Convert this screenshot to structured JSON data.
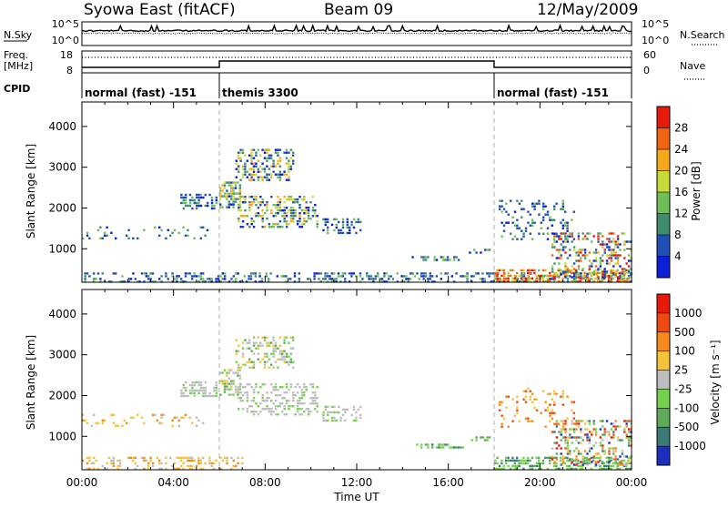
{
  "header": {
    "title": "Syowa East (fitACF)",
    "beam": "Beam 09",
    "date": "12/May/2009"
  },
  "chart_data": [
    {
      "type": "line",
      "panel": "noise",
      "left_label": "N.Sky",
      "left_ticks": [
        "10^5",
        "10^0"
      ],
      "right_ticks": [
        "10^5",
        "10^0"
      ],
      "right_legend": "N.Search",
      "description_series": [
        {
          "name": "N.Sky",
          "style": "solid"
        },
        {
          "name": "N.Search",
          "style": "dotted"
        }
      ]
    },
    {
      "type": "line",
      "panel": "frequency",
      "left_label_line1": "Freq.",
      "left_label_line2": "[MHz]",
      "left_ticks": [
        "18",
        "8"
      ],
      "right_ticks": [
        "60",
        "0"
      ],
      "right_legend": "Nave",
      "freq_segments": [
        {
          "start_h": 0,
          "end_h": 6,
          "level": "low"
        },
        {
          "start_h": 6,
          "end_h": 18,
          "level": "high"
        },
        {
          "start_h": 18,
          "end_h": 24,
          "level": "low"
        }
      ]
    },
    {
      "type": "table",
      "panel": "cpid",
      "label": "CPID",
      "modes": [
        {
          "label": "normal (fast) -151",
          "start_h": 0,
          "end_h": 6
        },
        {
          "label": "themis 3300",
          "start_h": 6,
          "end_h": 18
        },
        {
          "label": "normal (fast) -151",
          "start_h": 18,
          "end_h": 24
        }
      ]
    },
    {
      "type": "heatmap",
      "panel": "power",
      "ylabel": "Slant Range [km]",
      "yticks": [
        1000,
        2000,
        3000,
        4000
      ],
      "ylim": [
        180,
        4600
      ],
      "xlim": [
        0,
        24
      ],
      "colorbar": {
        "label": "Power [dB]",
        "ticks": [
          "28",
          "24",
          "20",
          "16",
          "12",
          "8",
          "4"
        ],
        "colors": [
          "#0a1fd6",
          "#1f4fb4",
          "#3f8c6c",
          "#6fbf59",
          "#c8d93a",
          "#f5a91a",
          "#f06414",
          "#e81a0a"
        ]
      },
      "regions": [
        {
          "t0": 0.0,
          "t1": 24.0,
          "r0": 200,
          "r1": 420,
          "density": 0.35,
          "color_set": "low"
        },
        {
          "t0": 0.0,
          "t1": 5.5,
          "r0": 1250,
          "r1": 1550,
          "density": 0.15,
          "color_set": "low"
        },
        {
          "t0": 4.3,
          "t1": 5.9,
          "r0": 1950,
          "r1": 2350,
          "density": 0.55,
          "color_set": "low"
        },
        {
          "t0": 6.0,
          "t1": 6.9,
          "r0": 2000,
          "r1": 2650,
          "density": 0.6,
          "color_set": "mid"
        },
        {
          "t0": 6.7,
          "t1": 9.2,
          "r0": 2700,
          "r1": 3450,
          "density": 0.45,
          "color_set": "mid"
        },
        {
          "t0": 6.8,
          "t1": 10.3,
          "r0": 1500,
          "r1": 2300,
          "density": 0.4,
          "color_set": "mid"
        },
        {
          "t0": 10.5,
          "t1": 12.2,
          "r0": 1400,
          "r1": 1750,
          "density": 0.35,
          "color_set": "low"
        },
        {
          "t0": 14.4,
          "t1": 16.6,
          "r0": 700,
          "r1": 820,
          "density": 0.4,
          "color_set": "low"
        },
        {
          "t0": 16.8,
          "t1": 17.8,
          "r0": 900,
          "r1": 1000,
          "density": 0.35,
          "color_set": "low"
        },
        {
          "t0": 18.0,
          "t1": 24.0,
          "r0": 220,
          "r1": 500,
          "density": 0.55,
          "color_set": "high"
        },
        {
          "t0": 18.2,
          "t1": 21.5,
          "r0": 1200,
          "r1": 2200,
          "density": 0.2,
          "color_set": "low"
        },
        {
          "t0": 20.5,
          "t1": 24.0,
          "r0": 300,
          "r1": 1400,
          "density": 0.35,
          "color_set": "mixed"
        }
      ]
    },
    {
      "type": "heatmap",
      "panel": "velocity",
      "ylabel": "Slant Range [km]",
      "yticks": [
        1000,
        2000,
        3000,
        4000
      ],
      "ylim": [
        180,
        4600
      ],
      "xlim": [
        0,
        24
      ],
      "colorbar": {
        "label": "Velocity [m s⁻¹]",
        "ticks": [
          "1000",
          "500",
          "100",
          "25",
          "-25",
          "-100",
          "-500",
          "-1000"
        ],
        "colors": [
          "#1b2fbf",
          "#3c7a78",
          "#5eaa5a",
          "#74d24c",
          "#bdbdbd",
          "#f5c33a",
          "#f58a1a",
          "#f04a10",
          "#e81a0a"
        ]
      },
      "regions": [
        {
          "t0": 0.0,
          "t1": 7.0,
          "r0": 200,
          "r1": 500,
          "density": 0.3,
          "color_set": "yellow"
        },
        {
          "t0": 0.0,
          "t1": 5.5,
          "r0": 1250,
          "r1": 1550,
          "density": 0.15,
          "color_set": "yellow"
        },
        {
          "t0": 4.3,
          "t1": 5.9,
          "r0": 1950,
          "r1": 2350,
          "density": 0.5,
          "color_set": "grey"
        },
        {
          "t0": 6.0,
          "t1": 6.9,
          "r0": 2000,
          "r1": 2650,
          "density": 0.5,
          "color_set": "greygreen"
        },
        {
          "t0": 6.7,
          "t1": 9.2,
          "r0": 2700,
          "r1": 3450,
          "density": 0.4,
          "color_set": "greygreen"
        },
        {
          "t0": 6.8,
          "t1": 10.3,
          "r0": 1500,
          "r1": 2300,
          "density": 0.4,
          "color_set": "grey"
        },
        {
          "t0": 10.5,
          "t1": 12.2,
          "r0": 1400,
          "r1": 1750,
          "density": 0.35,
          "color_set": "grey"
        },
        {
          "t0": 14.4,
          "t1": 16.6,
          "r0": 700,
          "r1": 820,
          "density": 0.45,
          "color_set": "green"
        },
        {
          "t0": 16.8,
          "t1": 17.8,
          "r0": 900,
          "r1": 1000,
          "density": 0.35,
          "color_set": "green"
        },
        {
          "t0": 18.0,
          "t1": 24.0,
          "r0": 220,
          "r1": 500,
          "density": 0.55,
          "color_set": "green"
        },
        {
          "t0": 18.2,
          "t1": 21.5,
          "r0": 1200,
          "r1": 2200,
          "density": 0.15,
          "color_set": "orange"
        },
        {
          "t0": 20.5,
          "t1": 24.0,
          "r0": 300,
          "r1": 1400,
          "density": 0.35,
          "color_set": "mixedvel"
        }
      ]
    }
  ],
  "x_axis": {
    "ticks": [
      "00:00",
      "04:00",
      "08:00",
      "12:00",
      "16:00",
      "20:00",
      "00:00"
    ],
    "label": "Time UT"
  }
}
